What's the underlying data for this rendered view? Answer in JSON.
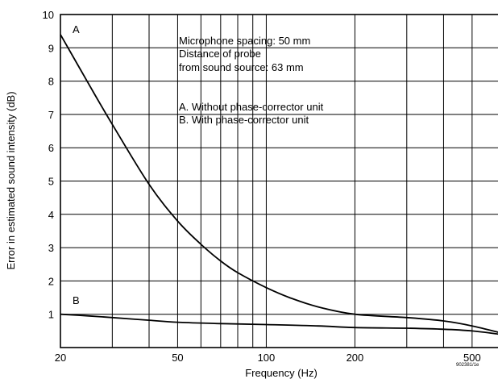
{
  "chart_data": {
    "type": "line",
    "title": "",
    "xlabel": "Frequency (Hz)",
    "ylabel": "Error in estimated sound intensity (dB)",
    "x_scale": "log",
    "xlim": [
      20,
      620
    ],
    "ylim": [
      0,
      10
    ],
    "grid": true,
    "x_gridlines": [
      20,
      30,
      40,
      50,
      60,
      70,
      80,
      90,
      100,
      200,
      300,
      400,
      500
    ],
    "x_tick_labels": [
      {
        "value": 20,
        "label": "20"
      },
      {
        "value": 50,
        "label": "50"
      },
      {
        "value": 100,
        "label": "100"
      },
      {
        "value": 200,
        "label": "200"
      },
      {
        "value": 500,
        "label": "500"
      }
    ],
    "y_ticks": [
      1,
      2,
      3,
      4,
      5,
      6,
      7,
      8,
      9,
      10
    ],
    "series": [
      {
        "name": "A",
        "x": [
          20,
          25,
          30,
          40,
          50,
          60,
          70,
          80,
          100,
          120,
          150,
          200,
          300,
          400,
          500,
          620
        ],
        "y": [
          9.4,
          7.9,
          6.7,
          4.9,
          3.8,
          3.1,
          2.6,
          2.25,
          1.8,
          1.5,
          1.22,
          1.0,
          0.9,
          0.8,
          0.65,
          0.45
        ]
      },
      {
        "name": "B",
        "x": [
          20,
          25,
          30,
          40,
          50,
          70,
          100,
          150,
          200,
          300,
          400,
          500,
          620
        ],
        "y": [
          1.0,
          0.95,
          0.9,
          0.82,
          0.76,
          0.72,
          0.69,
          0.65,
          0.6,
          0.58,
          0.55,
          0.5,
          0.4
        ]
      }
    ],
    "annotations": {
      "spacing_line1": "Microphone spacing: 50 mm",
      "spacing_line2": "Distance of probe",
      "spacing_line3": "from sound source: 63 mm",
      "legend_a": "A. Without phase-corrector unit",
      "legend_b": "B. With phase-corrector unit",
      "figure_code": "902381/1e"
    }
  }
}
